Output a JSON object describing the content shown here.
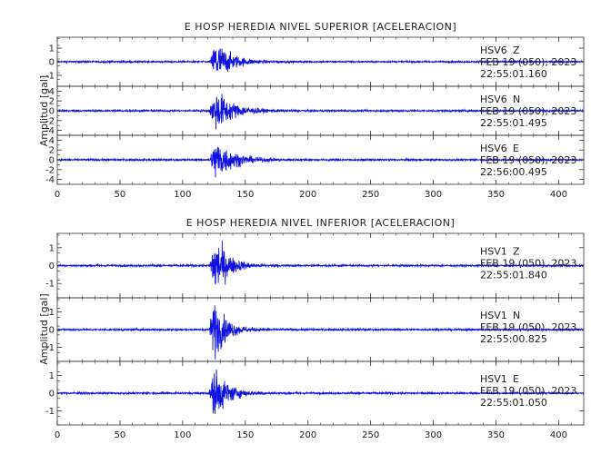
{
  "chart_data": [
    {
      "type": "line",
      "title": "E HOSP HEREDIA NIVEL SUPERIOR [ACELERACION]",
      "ylabel": "Amplitud [gal]",
      "xlabel": "",
      "xlim": [
        0,
        420
      ],
      "x_ticks": [
        0,
        50,
        100,
        150,
        200,
        250,
        300,
        350,
        400
      ],
      "color": "#1010e0",
      "grid": false,
      "traces": [
        {
          "station": "HSV6",
          "component": "Z",
          "date": "FEB 19 (050), 2023",
          "time": "22:55:01.160",
          "ylim": [
            -1.8,
            1.8
          ],
          "y_ticks": [
            -1,
            0,
            1
          ],
          "envelope": {
            "onset": 122,
            "peak_time": 126,
            "peak_amplitude": 1.6,
            "decay": 12,
            "noise": 0.06
          }
        },
        {
          "station": "HSV6",
          "component": "N",
          "date": "FEB 19 (050), 2023",
          "time": "22:55:01.495",
          "ylim": [
            -5,
            5
          ],
          "y_ticks": [
            -4,
            -2,
            0,
            2,
            4
          ],
          "envelope": {
            "onset": 121,
            "peak_time": 127,
            "peak_amplitude": 4.2,
            "decay": 13,
            "noise": 0.18
          }
        },
        {
          "station": "HSV6",
          "component": "E",
          "date": "FEB 19 (050), 2023",
          "time": "22:56:00.495",
          "ylim": [
            -5,
            5
          ],
          "y_ticks": [
            -4,
            -2,
            0,
            2,
            4
          ],
          "envelope": {
            "onset": 121,
            "peak_time": 127,
            "peak_amplitude": 4.3,
            "decay": 13,
            "noise": 0.18
          }
        }
      ]
    },
    {
      "type": "line",
      "title": "E HOSP HEREDIA NIVEL INFERIOR [ACELERACION]",
      "ylabel": "Amplitud [gal]",
      "xlabel": "",
      "xlim": [
        0,
        420
      ],
      "x_ticks": [
        0,
        50,
        100,
        150,
        200,
        250,
        300,
        350,
        400
      ],
      "color": "#1010e0",
      "grid": false,
      "traces": [
        {
          "station": "HSV1",
          "component": "Z",
          "date": "FEB 19 (050), 2023",
          "time": "22:55:01.840",
          "ylim": [
            -1.8,
            1.8
          ],
          "y_ticks": [
            -1,
            0,
            1
          ],
          "envelope": {
            "onset": 121,
            "peak_time": 126,
            "peak_amplitude": 1.7,
            "decay": 10,
            "noise": 0.05
          }
        },
        {
          "station": "HSV1",
          "component": "N",
          "date": "FEB 19 (050), 2023",
          "time": "22:55:00.825",
          "ylim": [
            -1.8,
            1.8
          ],
          "y_ticks": [
            -1,
            0,
            1
          ],
          "envelope": {
            "onset": 121,
            "peak_time": 125,
            "peak_amplitude": 1.6,
            "decay": 10,
            "noise": 0.05
          }
        },
        {
          "station": "HSV1",
          "component": "E",
          "date": "FEB 19 (050), 2023",
          "time": "22:55:01.050",
          "ylim": [
            -1.8,
            1.8
          ],
          "y_ticks": [
            -1,
            0,
            1
          ],
          "envelope": {
            "onset": 121,
            "peak_time": 126,
            "peak_amplitude": 1.5,
            "decay": 10,
            "noise": 0.05
          }
        }
      ]
    }
  ]
}
